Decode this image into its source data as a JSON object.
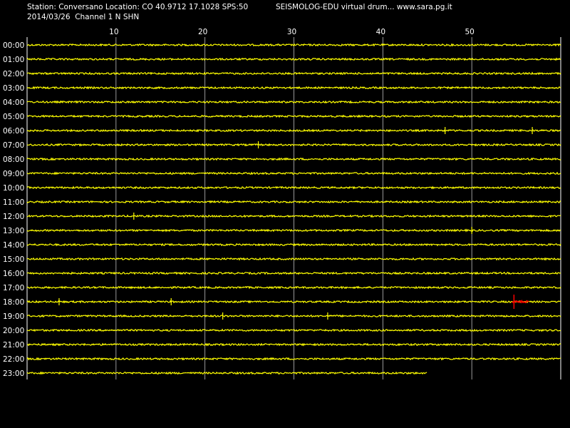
{
  "header": {
    "station_line": "Station: Conversano Location: CO 40.9712 17.1028 SPS:50",
    "brand_line": "SEISMOLOG-EDU virtual drum... www.sara.pg.it",
    "date_line": "2014/03/26  Channel 1 N SHN"
  },
  "axis": {
    "minute_ticks": [
      "10",
      "20",
      "30",
      "40",
      "50"
    ],
    "hour_labels": [
      "00:00",
      "01:00",
      "02:00",
      "03:00",
      "04:00",
      "05:00",
      "06:00",
      "07:00",
      "08:00",
      "09:00",
      "10:00",
      "11:00",
      "12:00",
      "13:00",
      "14:00",
      "15:00",
      "16:00",
      "17:00",
      "18:00",
      "19:00",
      "20:00",
      "21:00",
      "22:00",
      "23:00"
    ]
  },
  "colors": {
    "background": "#000000",
    "trace": "#ffff00",
    "gridline": "#ffffff",
    "event_marker": "#ff0000"
  },
  "recording": {
    "last_row_end_minute": 45,
    "event": {
      "hour_row": 18,
      "minute_start": 54.5,
      "minute_end": 56.5
    }
  }
}
